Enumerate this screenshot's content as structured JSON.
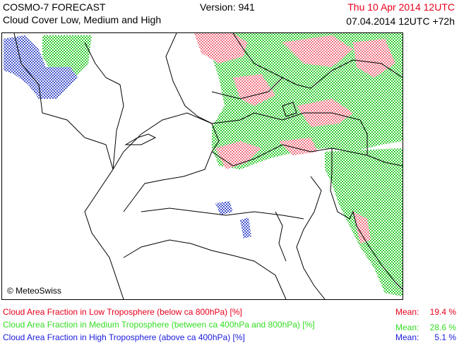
{
  "header": {
    "title": "COSMO-7 FORECAST",
    "subtitle": "Cloud Cover Low, Medium and High",
    "version": "Version: 941",
    "valid_time": "Thu 10 Apr 2014 12UTC",
    "run_time": "07.04.2014 12UTC +72h"
  },
  "map": {
    "credit": "© MeteoSwiss"
  },
  "legend": [
    {
      "label": "Cloud Area Fraction in Low Troposphere (below ca 800hPa) [%]",
      "mean_label": "Mean:",
      "mean": "19.4 %",
      "color": "#e8001c"
    },
    {
      "label": "Cloud Area Fraction in Medium Troposphere (between ca 400hPa and 800hPa) [%]",
      "mean_label": "Mean:",
      "mean": "28.6 %",
      "color": "#33dd22"
    },
    {
      "label": "Cloud Area Fraction in High Troposphere (above ca 400hPa) [%]",
      "mean_label": "Mean:",
      "mean": "5.1 %",
      "color": "#1a1adc"
    }
  ]
}
